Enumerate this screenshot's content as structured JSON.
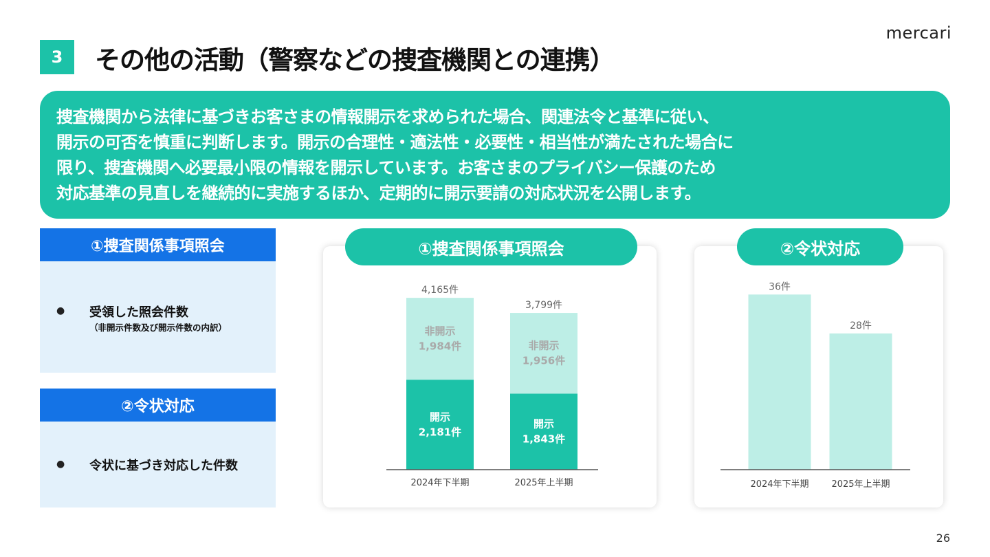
{
  "section_number": "3",
  "title": "その他の活動（警察などの捜査機関との連携）",
  "logo_text": "mercari",
  "banner_lines": [
    "捜査機関から法律に基づきお客さまの情報開示を求められた場合、関連法令と基準に従い、",
    "開示の可否を慎重に判断します。開示の合理性・適法性・必要性・相当性が満たされた場合に",
    "限り、捜査機関へ必要最小限の情報を開示しています。お客さまのプライバシー保護のため",
    "対応基準の見直しを継続的に実施するほか、定期的に開示要請の対応状況を公開します。"
  ],
  "left_sections": [
    {
      "heading": "①捜査関係事項照会",
      "bullet": "●",
      "item": "受領した照会件数",
      "sub": "（非開示件数及び開示件数の内訳）"
    },
    {
      "heading": "②令状対応",
      "bullet": "●",
      "item": "令状に基づき対応した件数",
      "sub": ""
    }
  ],
  "page_number": "26",
  "colors": {
    "teal": "#1cc2a8",
    "light_teal": "#bdeee6",
    "blue": "#1473e6",
    "light_blue": "#e3f1fb"
  },
  "chart_data": [
    {
      "type": "bar",
      "stacked": true,
      "title": "①捜査関係事項照会",
      "categories": [
        "2024年下半期",
        "2025年上半期"
      ],
      "totals": [
        4165,
        3799
      ],
      "total_labels": [
        "4,165件",
        "3,799件"
      ],
      "series": [
        {
          "name": "開示",
          "values": [
            2181,
            1843
          ],
          "labels": [
            "2,181件",
            "1,843件"
          ],
          "color": "#1cc2a8"
        },
        {
          "name": "非開示",
          "values": [
            1984,
            1956
          ],
          "labels": [
            "1,984件",
            "1,956件"
          ],
          "color": "#bdeee6"
        }
      ],
      "ylim": [
        0,
        4500
      ]
    },
    {
      "type": "bar",
      "title": "②令状対応",
      "categories": [
        "2024年下半期",
        "2025年上半期"
      ],
      "values": [
        36,
        28
      ],
      "value_labels": [
        "36件",
        "28件"
      ],
      "color": "#bdeee6",
      "ylim": [
        0,
        40
      ]
    }
  ]
}
